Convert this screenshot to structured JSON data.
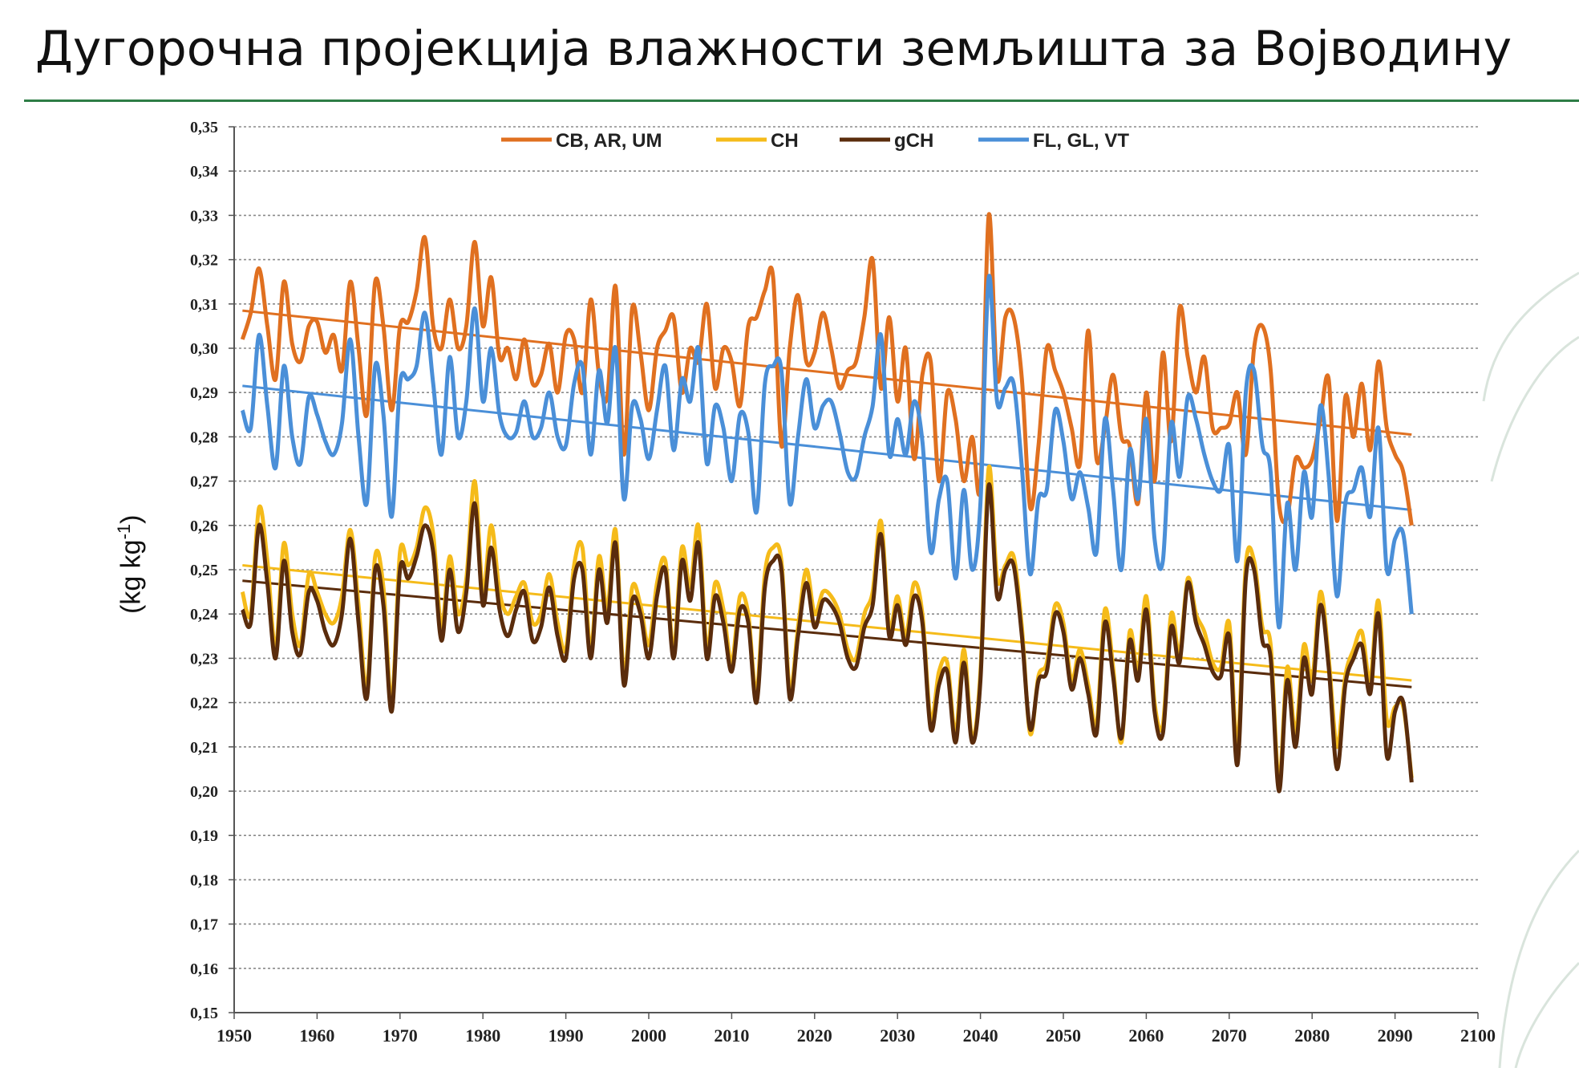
{
  "slide": {
    "title": "Дугорочна пројекција влажности земљишта за Војводину",
    "accent_color": "#2e7d46"
  },
  "chart_data": {
    "type": "line",
    "title": "",
    "xlabel": "",
    "ylabel": "(kg kg-1)",
    "ylabel_base": "(kg kg",
    "ylabel_sup": "-1",
    "ylabel_close": ")",
    "xlim": [
      1950,
      2100
    ],
    "ylim": [
      0.15,
      0.35
    ],
    "x_ticks": [
      "1950",
      "1960",
      "1970",
      "1980",
      "1990",
      "2000",
      "2010",
      "2020",
      "2030",
      "2040",
      "2050",
      "2060",
      "2070",
      "2080",
      "2090",
      "2100"
    ],
    "y_ticks": [
      "0,15",
      "0,16",
      "0,17",
      "0,18",
      "0,19",
      "0,20",
      "0,21",
      "0,22",
      "0,23",
      "0,24",
      "0,25",
      "0,26",
      "0,27",
      "0,28",
      "0,29",
      "0,30",
      "0,31",
      "0,32",
      "0,33",
      "0,34",
      "0,35"
    ],
    "grid": true,
    "legend_position": "top",
    "series": [
      {
        "name": "CB, AR, UM",
        "color": "#e07020",
        "x_start": 1951,
        "step": 1,
        "values": [
          0.302,
          0.308,
          0.318,
          0.305,
          0.293,
          0.315,
          0.301,
          0.297,
          0.305,
          0.306,
          0.299,
          0.303,
          0.295,
          0.315,
          0.3,
          0.285,
          0.315,
          0.305,
          0.286,
          0.305,
          0.306,
          0.313,
          0.325,
          0.305,
          0.3,
          0.311,
          0.3,
          0.305,
          0.324,
          0.305,
          0.316,
          0.298,
          0.3,
          0.293,
          0.302,
          0.292,
          0.294,
          0.301,
          0.29,
          0.303,
          0.302,
          0.29,
          0.311,
          0.294,
          0.289,
          0.314,
          0.276,
          0.309,
          0.299,
          0.286,
          0.3,
          0.304,
          0.307,
          0.29,
          0.3,
          0.297,
          0.31,
          0.291,
          0.3,
          0.297,
          0.287,
          0.305,
          0.307,
          0.313,
          0.316,
          0.278,
          0.3,
          0.312,
          0.297,
          0.299,
          0.308,
          0.3,
          0.291,
          0.295,
          0.297,
          0.307,
          0.32,
          0.291,
          0.307,
          0.288,
          0.3,
          0.275,
          0.294,
          0.297,
          0.27,
          0.29,
          0.284,
          0.27,
          0.28,
          0.269,
          0.33,
          0.293,
          0.307,
          0.307,
          0.293,
          0.264,
          0.278,
          0.3,
          0.295,
          0.29,
          0.282,
          0.274,
          0.304,
          0.275,
          0.282,
          0.294,
          0.28,
          0.278,
          0.265,
          0.29,
          0.27,
          0.299,
          0.279,
          0.309,
          0.298,
          0.29,
          0.298,
          0.282,
          0.282,
          0.283,
          0.29,
          0.276,
          0.3,
          0.305,
          0.295,
          0.265,
          0.262,
          0.275,
          0.273,
          0.275,
          0.284,
          0.293,
          0.261,
          0.289,
          0.28,
          0.292,
          0.277,
          0.297,
          0.282,
          0.276,
          0.272,
          0.26
        ],
        "trend": [
          0.3085,
          0.2805
        ]
      },
      {
        "name": "CH",
        "color": "#f5bb1a",
        "x_start": 1951,
        "step": 1,
        "values": [
          0.245,
          0.24,
          0.264,
          0.252,
          0.232,
          0.256,
          0.24,
          0.233,
          0.249,
          0.245,
          0.24,
          0.238,
          0.244,
          0.259,
          0.242,
          0.223,
          0.253,
          0.246,
          0.22,
          0.254,
          0.251,
          0.255,
          0.264,
          0.258,
          0.237,
          0.253,
          0.24,
          0.248,
          0.27,
          0.245,
          0.26,
          0.245,
          0.24,
          0.244,
          0.247,
          0.238,
          0.24,
          0.249,
          0.238,
          0.232,
          0.251,
          0.255,
          0.232,
          0.253,
          0.241,
          0.259,
          0.226,
          0.246,
          0.242,
          0.233,
          0.247,
          0.252,
          0.232,
          0.255,
          0.246,
          0.26,
          0.232,
          0.247,
          0.241,
          0.229,
          0.244,
          0.24,
          0.222,
          0.249,
          0.255,
          0.252,
          0.223,
          0.237,
          0.25,
          0.24,
          0.245,
          0.244,
          0.24,
          0.232,
          0.23,
          0.24,
          0.245,
          0.261,
          0.237,
          0.244,
          0.235,
          0.247,
          0.24,
          0.216,
          0.227,
          0.229,
          0.213,
          0.232,
          0.212,
          0.227,
          0.273,
          0.248,
          0.251,
          0.253,
          0.237,
          0.213,
          0.226,
          0.229,
          0.242,
          0.238,
          0.225,
          0.232,
          0.224,
          0.215,
          0.241,
          0.228,
          0.211,
          0.236,
          0.227,
          0.244,
          0.22,
          0.215,
          0.24,
          0.231,
          0.248,
          0.24,
          0.236,
          0.229,
          0.228,
          0.238,
          0.21,
          0.251,
          0.252,
          0.237,
          0.233,
          0.202,
          0.228,
          0.213,
          0.233,
          0.225,
          0.245,
          0.23,
          0.21,
          0.226,
          0.232,
          0.236,
          0.225,
          0.243,
          0.216,
          0.219,
          0.219,
          0.203
        ],
        "trend": [
          0.251,
          0.225
        ]
      },
      {
        "name": "gCH",
        "color": "#5a2c0c",
        "x_start": 1951,
        "step": 1,
        "values": [
          0.241,
          0.238,
          0.26,
          0.247,
          0.23,
          0.252,
          0.236,
          0.231,
          0.245,
          0.243,
          0.236,
          0.233,
          0.24,
          0.257,
          0.238,
          0.221,
          0.25,
          0.242,
          0.218,
          0.25,
          0.248,
          0.253,
          0.26,
          0.254,
          0.234,
          0.25,
          0.236,
          0.245,
          0.265,
          0.242,
          0.255,
          0.241,
          0.235,
          0.241,
          0.245,
          0.234,
          0.237,
          0.246,
          0.235,
          0.23,
          0.248,
          0.25,
          0.23,
          0.25,
          0.238,
          0.256,
          0.224,
          0.243,
          0.24,
          0.23,
          0.244,
          0.25,
          0.23,
          0.252,
          0.243,
          0.256,
          0.23,
          0.244,
          0.238,
          0.227,
          0.241,
          0.238,
          0.22,
          0.246,
          0.252,
          0.25,
          0.221,
          0.235,
          0.247,
          0.237,
          0.243,
          0.242,
          0.238,
          0.23,
          0.228,
          0.237,
          0.242,
          0.258,
          0.235,
          0.242,
          0.233,
          0.244,
          0.238,
          0.214,
          0.224,
          0.227,
          0.211,
          0.229,
          0.211,
          0.225,
          0.269,
          0.244,
          0.25,
          0.251,
          0.235,
          0.214,
          0.225,
          0.227,
          0.24,
          0.236,
          0.223,
          0.23,
          0.222,
          0.213,
          0.238,
          0.226,
          0.212,
          0.234,
          0.225,
          0.241,
          0.218,
          0.213,
          0.237,
          0.229,
          0.247,
          0.238,
          0.233,
          0.227,
          0.226,
          0.235,
          0.206,
          0.248,
          0.25,
          0.234,
          0.23,
          0.2,
          0.225,
          0.21,
          0.23,
          0.222,
          0.242,
          0.228,
          0.205,
          0.224,
          0.23,
          0.233,
          0.222,
          0.24,
          0.208,
          0.218,
          0.22,
          0.202
        ],
        "trend": [
          0.2475,
          0.2235
        ]
      },
      {
        "name": "FL, GL, VT",
        "color": "#4a8fd8",
        "x_start": 1951,
        "step": 1,
        "values": [
          0.286,
          0.282,
          0.303,
          0.287,
          0.273,
          0.296,
          0.28,
          0.274,
          0.289,
          0.285,
          0.279,
          0.276,
          0.283,
          0.302,
          0.28,
          0.265,
          0.296,
          0.285,
          0.262,
          0.292,
          0.293,
          0.296,
          0.308,
          0.292,
          0.276,
          0.298,
          0.28,
          0.288,
          0.309,
          0.288,
          0.3,
          0.285,
          0.28,
          0.281,
          0.288,
          0.28,
          0.282,
          0.29,
          0.28,
          0.278,
          0.292,
          0.296,
          0.276,
          0.295,
          0.283,
          0.3,
          0.266,
          0.287,
          0.284,
          0.275,
          0.286,
          0.296,
          0.277,
          0.293,
          0.288,
          0.3,
          0.274,
          0.287,
          0.282,
          0.27,
          0.285,
          0.281,
          0.263,
          0.292,
          0.296,
          0.295,
          0.265,
          0.28,
          0.293,
          0.282,
          0.287,
          0.288,
          0.281,
          0.272,
          0.271,
          0.28,
          0.287,
          0.303,
          0.276,
          0.284,
          0.276,
          0.288,
          0.279,
          0.254,
          0.266,
          0.27,
          0.248,
          0.268,
          0.25,
          0.265,
          0.316,
          0.288,
          0.291,
          0.292,
          0.273,
          0.249,
          0.266,
          0.268,
          0.286,
          0.279,
          0.266,
          0.272,
          0.264,
          0.254,
          0.284,
          0.268,
          0.25,
          0.277,
          0.266,
          0.284,
          0.257,
          0.252,
          0.283,
          0.271,
          0.289,
          0.284,
          0.276,
          0.27,
          0.268,
          0.278,
          0.252,
          0.29,
          0.295,
          0.278,
          0.272,
          0.237,
          0.265,
          0.25,
          0.272,
          0.262,
          0.287,
          0.271,
          0.244,
          0.265,
          0.268,
          0.273,
          0.262,
          0.282,
          0.25,
          0.257,
          0.258,
          0.24
        ],
        "trend": [
          0.2915,
          0.2635
        ]
      }
    ]
  }
}
